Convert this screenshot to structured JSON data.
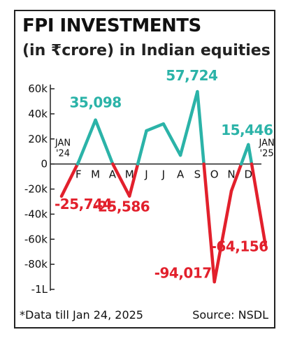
{
  "header": {
    "title": "FPI INVESTMENTS",
    "subtitle": "(in ₹crore) in Indian equities"
  },
  "footer": {
    "note": "*Data till Jan 24, 2025",
    "source": "Source: NSDL"
  },
  "colors": {
    "positive": "#2bb3a8",
    "negative": "#e2202c",
    "axis": "#222222"
  },
  "chart_data": {
    "type": "line",
    "title": "FPI INVESTMENTS",
    "subtitle": "(in ₹crore) in Indian equities",
    "x_tick_labels": [
      "JAN\n'24",
      "F",
      "M",
      "A",
      "M",
      "J",
      "J",
      "A",
      "S",
      "O",
      "N",
      "D",
      "JAN\n'25"
    ],
    "values": [
      -25744,
      1500,
      35098,
      500,
      -25586,
      26500,
      32000,
      7000,
      57724,
      -94017,
      -21500,
      15446,
      -64156
    ],
    "data_labels": [
      {
        "index": 2,
        "text": "35,098",
        "sign": "positive"
      },
      {
        "index": 8,
        "text": "57,724",
        "sign": "positive"
      },
      {
        "index": 11,
        "text": "15,446",
        "sign": "positive"
      },
      {
        "index": 0,
        "text": "-25,744",
        "sign": "negative"
      },
      {
        "index": 4,
        "text": "-25,586",
        "sign": "negative"
      },
      {
        "index": 9,
        "text": "-94,017",
        "sign": "negative"
      },
      {
        "index": 12,
        "text": "-64,156",
        "sign": "negative"
      }
    ],
    "y_ticks": [
      {
        "value": 60000,
        "label": "60k"
      },
      {
        "value": 40000,
        "label": "40k"
      },
      {
        "value": 20000,
        "label": "20k"
      },
      {
        "value": 0,
        "label": "0"
      },
      {
        "value": -20000,
        "label": "-20k"
      },
      {
        "value": -40000,
        "label": "-40k"
      },
      {
        "value": -60000,
        "label": "-60k"
      },
      {
        "value": -80000,
        "label": "-80k"
      },
      {
        "value": -100000,
        "label": "-1L"
      }
    ],
    "ylim": [
      -100000,
      60000
    ],
    "grid": false,
    "legend": "none"
  }
}
